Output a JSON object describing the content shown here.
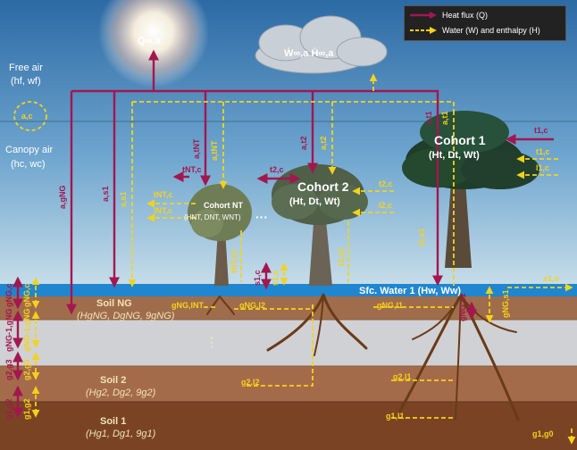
{
  "legend": {
    "heat_label": "Heat flux (Q)",
    "water_label": "Water (W) and enthalpy (H)",
    "heat_color": "#a3174f",
    "water_color": "#f5d21a"
  },
  "atmosphere": {
    "sun_flux": "Q̇∞,a",
    "cloud_flux": "Ẇ∞,a  Ḣ∞,a",
    "free_air_title": "Free air",
    "free_air_state": "(hf, wf)",
    "canopy_air_title": "Canopy air",
    "canopy_air_state": "(hc, wc)",
    "exchange_label": "a,c"
  },
  "cohorts": [
    {
      "name": "Cohort 1",
      "state": "(Ht, Dt, Wt)"
    },
    {
      "name": "Cohort 2",
      "state": "(Ht, Dt, Wt)"
    },
    {
      "name": "Cohort NT",
      "state": "(HNT, DNT, WNT)"
    }
  ],
  "ellipsis": "···",
  "surface_water": {
    "label": "Sfc. Water 1 (Hw, Ww)"
  },
  "soils": [
    {
      "name": "Soil NG",
      "state": "(HgNG, DgNG, 9gNG)"
    },
    {
      "name": "Soil 2",
      "state": "(Hg2, Dg2, 9g2)"
    },
    {
      "name": "Soil 1",
      "state": "(Hg1, Dg1, 9g1)"
    }
  ],
  "flux_labels": {
    "a_gNG": "a,gNG",
    "a_s1": "a,s1",
    "a_tNT": "a,tNT",
    "a_tNT_w": "a,tNT",
    "a_t2": "a,t2",
    "a_t2_w": "a,t2",
    "a_t1": "a,t1",
    "a_t1_w": "a,t1",
    "tNT_c": "tNT,c",
    "tNT_c_w": "tNT,c",
    "lNT_c": "lNT,c",
    "tNT_s1": "tNT,s1",
    "t2_c": "t2,c",
    "t2_c_w": "t2,c",
    "l2_c": "l2,c",
    "t2_s1": "t2,s1",
    "t1_c": "t1,c",
    "t1_c_w": "t1,c",
    "l1_c": "l1,c",
    "t1_s1": "t1,s1",
    "s1_c": "s1,c",
    "s1_c_w": "s1,c",
    "s1_o": "s1,o",
    "gNG_s1": "gNG,s1",
    "gNG_s1_w": "gNG,s1",
    "gNG_c": "gNG,c",
    "gNG_c_w": "gNG,c",
    "gNG_gNG1": "gNG-1,gNG",
    "gNG_gNG1_w": "gNG-1,gNG",
    "g2_g3": "g2,g3",
    "g2_g3_w": "g2,g3",
    "g1_g2": "g1,g2",
    "g1_g2_w": "g1,g2",
    "gNG_lNT": "gNG,lNT",
    "gNG_l2": "gNG,l2",
    "gNG_l1": "gNG,l1",
    "g2_l1": "g2,l1",
    "g2_l2": "g2,l2",
    "g1_l1": "g1,l1",
    "g1_g0": "g1,g0"
  }
}
